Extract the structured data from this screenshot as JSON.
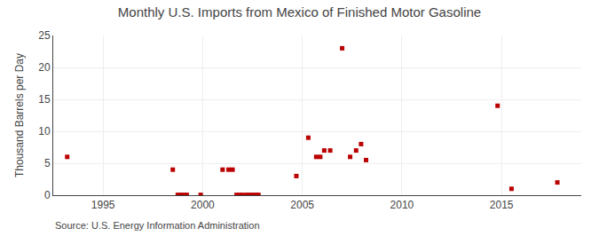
{
  "chart_data": {
    "type": "scatter",
    "title": "Monthly U.S. Imports from Mexico of Finished Motor Gasoline",
    "ylabel": "Thousand Barrels per Day",
    "annotations": [
      "Source: U.S. Energy Information Administration"
    ],
    "x": [
      1993.2,
      1998.5,
      1998.75,
      1998.9,
      1999.05,
      1999.2,
      1999.9,
      2001.0,
      2001.3,
      2001.5,
      2001.7,
      2001.85,
      2002.0,
      2002.2,
      2002.35,
      2002.5,
      2002.65,
      2002.8,
      2004.7,
      2005.3,
      2005.7,
      2005.9,
      2006.1,
      2006.4,
      2007.0,
      2007.4,
      2007.7,
      2007.95,
      2008.2,
      2014.8,
      2015.5,
      2017.8
    ],
    "values": [
      6.0,
      4.0,
      0.05,
      0.05,
      0.05,
      0.05,
      0.05,
      4.0,
      4.0,
      4.0,
      0.05,
      0.05,
      0.05,
      0.05,
      0.05,
      0.05,
      0.05,
      0.05,
      3.0,
      9.0,
      6.0,
      6.0,
      7.0,
      7.0,
      23.0,
      6.0,
      7.0,
      8.0,
      5.5,
      14.0,
      1.0,
      2.0
    ],
    "color": "#bb0000",
    "marker": "square",
    "xlim": [
      1992.5,
      2019
    ],
    "ylim": [
      0,
      25
    ],
    "xticks": [
      1995,
      2000,
      2005,
      2010,
      2015
    ],
    "yticks": [
      0,
      5,
      10,
      15,
      20,
      25
    ],
    "grid": true
  }
}
